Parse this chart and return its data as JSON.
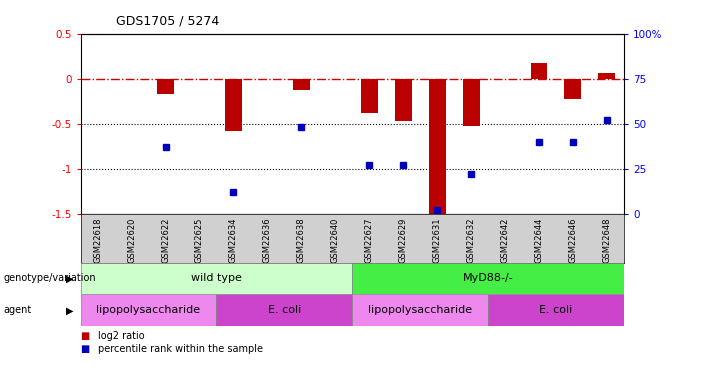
{
  "title": "GDS1705 / 5274",
  "samples": [
    "GSM22618",
    "GSM22620",
    "GSM22622",
    "GSM22625",
    "GSM22634",
    "GSM22636",
    "GSM22638",
    "GSM22640",
    "GSM22627",
    "GSM22629",
    "GSM22631",
    "GSM22632",
    "GSM22642",
    "GSM22644",
    "GSM22646",
    "GSM22648"
  ],
  "log2_ratio": [
    0.0,
    0.0,
    -0.17,
    0.0,
    -0.58,
    0.0,
    -0.12,
    0.0,
    -0.38,
    -0.47,
    -1.53,
    -0.52,
    0.0,
    0.18,
    -0.22,
    0.06
  ],
  "percentile": [
    null,
    null,
    37,
    null,
    12,
    null,
    48,
    null,
    27,
    27,
    2,
    22,
    null,
    40,
    40,
    52
  ],
  "ylim_left": [
    -1.5,
    0.5
  ],
  "ylim_right": [
    0,
    100
  ],
  "bar_color": "#bb0000",
  "dot_color": "#0000bb",
  "hline_color": "#cc0000",
  "dotline1": -0.5,
  "dotline2": -1.0,
  "background_color": "#ffffff",
  "genotype_groups": [
    {
      "label": "wild type",
      "start": 0,
      "end": 8,
      "color": "#ccffcc"
    },
    {
      "label": "MyD88-/-",
      "start": 8,
      "end": 16,
      "color": "#44ee44"
    }
  ],
  "agent_groups": [
    {
      "label": "lipopolysaccharide",
      "start": 0,
      "end": 4,
      "color": "#ee88ee"
    },
    {
      "label": "E. coli",
      "start": 4,
      "end": 8,
      "color": "#cc44cc"
    },
    {
      "label": "lipopolysaccharide",
      "start": 8,
      "end": 12,
      "color": "#ee88ee"
    },
    {
      "label": "E. coli",
      "start": 12,
      "end": 16,
      "color": "#cc44cc"
    }
  ],
  "legend_red": "log2 ratio",
  "legend_blue": "percentile rank within the sample",
  "left_yticks": [
    -1.5,
    -1.0,
    -0.5,
    0.0,
    0.5
  ],
  "left_yticklabels": [
    "-1.5",
    "-1",
    "-0.5",
    "0",
    "0.5"
  ],
  "right_yticks": [
    0,
    25,
    50,
    75,
    100
  ],
  "right_yticklabels": [
    "0",
    "25",
    "50",
    "75",
    "100%"
  ]
}
